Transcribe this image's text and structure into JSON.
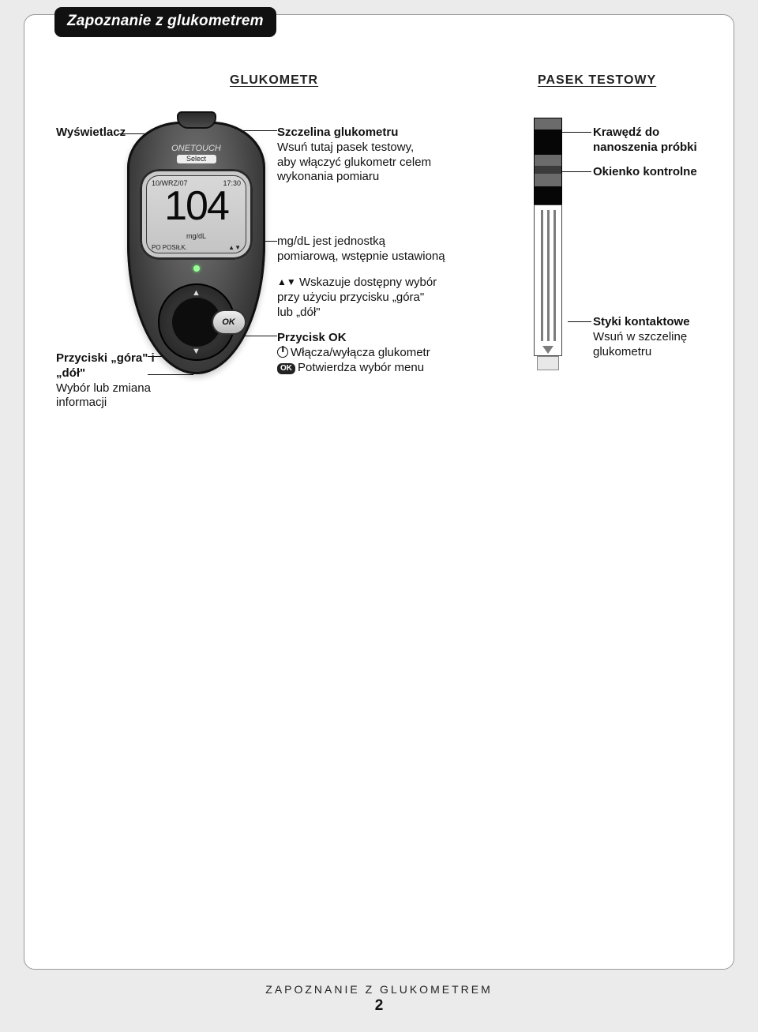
{
  "page": {
    "tab_title": "Zapoznanie z glukometrem",
    "footer_title": "ZAPOZNANIE Z GLUKOMETREM",
    "footer_page": "2"
  },
  "headers": {
    "left": "GLUKOMETR",
    "right": "PASEK TESTOWY"
  },
  "device": {
    "brand_top": "ONETOUCH",
    "brand_sub": "Select",
    "screen_date": "10/WRZ/07",
    "screen_time": "17:30",
    "screen_reading": "104",
    "screen_unit": "mg/dL",
    "screen_bl": "PO POSIŁK.",
    "screen_br": "▲▼",
    "ok_label": "OK"
  },
  "labels": {
    "display": {
      "title": "Wyświetlacz"
    },
    "slot": {
      "title": "Szczelina glukometru",
      "desc": "Wsuń tutaj pasek testowy, aby włączyć glukometr celem wykonania pomiaru"
    },
    "edge": {
      "title": "Krawędź do nanoszenia próbki"
    },
    "window": {
      "title": "Okienko kontrolne"
    },
    "unit": {
      "desc": "mg/dL jest jednostką pomiarową, wstępnie ustawioną"
    },
    "arrows": {
      "desc": "Wskazuje dostępny wybór przy użyciu przycisku „góra\" lub „dół\"",
      "tri": "▲▼"
    },
    "okbtn": {
      "title": "Przycisk OK",
      "line1": "Włącza/wyłącza glukometr",
      "line2": "Potwierdza wybór menu",
      "ok_pill": "OK"
    },
    "updown": {
      "title": "Przyciski „góra\" i „dół\"",
      "desc": "Wybór lub zmiana informacji"
    },
    "contacts": {
      "title": "Styki kontaktowe",
      "desc": "Wsuń w szczelinę glukometru"
    }
  },
  "colors": {
    "page_bg": "#ebebeb",
    "card_border": "#999999",
    "tab_bg": "#111111",
    "text": "#111111"
  }
}
